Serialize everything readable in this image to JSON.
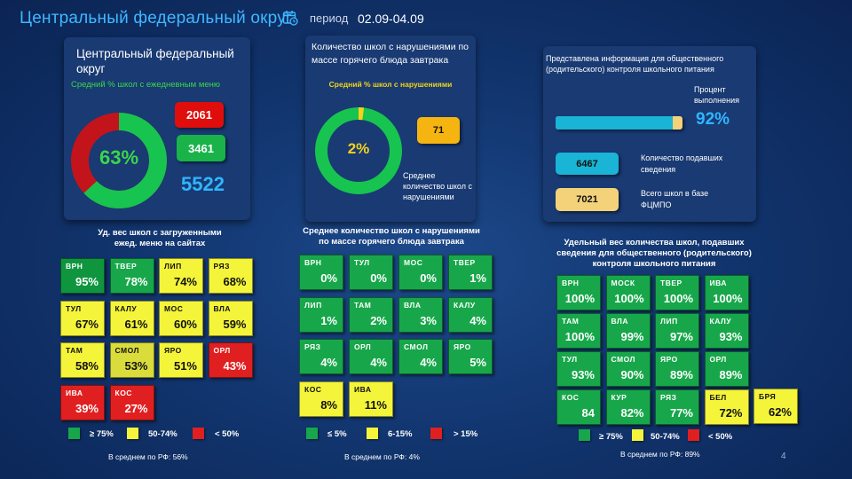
{
  "header": {
    "title": "Центральный федеральный округ",
    "period_label": "период",
    "period_value": "02.09-04.09"
  },
  "panel1": {
    "title": "Центральный федеральный округ",
    "subtitle": "Средний % школ с ежедневным меню",
    "donut_percent": "63%",
    "donut_fraction": 0.63,
    "box_red": "2061",
    "box_green": "3461",
    "total": "5522"
  },
  "panel2": {
    "title": "Количество школ с нарушениями по массе горячего блюда завтрака",
    "subtitle": "Средний % школ с нарушениями",
    "donut_percent": "2%",
    "donut_fraction": 0.02,
    "box_value": "71",
    "note": "Среднее количество школ с нарушениями"
  },
  "panel3": {
    "title": "Представлена информация для общественного (родительского) контроля школьного питания",
    "percent_label": "Процент выполнения",
    "percent_value": "92%",
    "progress_fraction": 0.92,
    "count_value": "6467",
    "count_label": "Количество подавших сведения",
    "total_value": "7021",
    "total_label": "Всего школ в базе ФЦМПО"
  },
  "section1": {
    "caption": "Уд. вес школ с загруженными ежед. меню на сайтах",
    "tiles": [
      {
        "code": "ВРН",
        "value": "95%",
        "color": "dkgreen"
      },
      {
        "code": "ТВЕР",
        "value": "78%",
        "color": "green"
      },
      {
        "code": "ЛИП",
        "value": "74%",
        "color": "yellow"
      },
      {
        "code": "РЯЗ",
        "value": "68%",
        "color": "yellow"
      },
      {
        "code": "ТУЛ",
        "value": "67%",
        "color": "yellow"
      },
      {
        "code": "КАЛУ",
        "value": "61%",
        "color": "yellow"
      },
      {
        "code": "МОС",
        "value": "60%",
        "color": "yellow"
      },
      {
        "code": "ВЛА",
        "value": "59%",
        "color": "yellow"
      },
      {
        "code": "ТАМ",
        "value": "58%",
        "color": "yellow"
      },
      {
        "code": "СМОЛ",
        "value": "53%",
        "color": "olive"
      },
      {
        "code": "ЯРО",
        "value": "51%",
        "color": "yellow"
      },
      {
        "code": "ОРЛ",
        "value": "43%",
        "color": "red"
      },
      {
        "code": "ИВА",
        "value": "39%",
        "color": "red"
      },
      {
        "code": "КОС",
        "value": "27%",
        "color": "red"
      }
    ],
    "legend": [
      "≥ 75%",
      "50-74%",
      "< 50%"
    ],
    "average": "В среднем по РФ: 56%"
  },
  "section2": {
    "caption": "Среднее количество школ с нарушениями по массе горячего блюда завтрака",
    "tiles": [
      {
        "code": "ВРН",
        "value": "0%",
        "color": "green"
      },
      {
        "code": "ТУЛ",
        "value": "0%",
        "color": "green"
      },
      {
        "code": "МОС",
        "value": "0%",
        "color": "green"
      },
      {
        "code": "ТВЕР",
        "value": "1%",
        "color": "green"
      },
      {
        "code": "ЛИП",
        "value": "1%",
        "color": "green"
      },
      {
        "code": "ТАМ",
        "value": "2%",
        "color": "green"
      },
      {
        "code": "ВЛА",
        "value": "3%",
        "color": "green"
      },
      {
        "code": "КАЛУ",
        "value": "4%",
        "color": "green"
      },
      {
        "code": "РЯЗ",
        "value": "4%",
        "color": "green"
      },
      {
        "code": "ОРЛ",
        "value": "4%",
        "color": "green"
      },
      {
        "code": "СМОЛ",
        "value": "4%",
        "color": "green"
      },
      {
        "code": "ЯРО",
        "value": "5%",
        "color": "green"
      },
      {
        "code": "КОС",
        "value": "8%",
        "color": "yellow"
      },
      {
        "code": "ИВА",
        "value": "11%",
        "color": "yellow"
      }
    ],
    "legend": [
      "≤ 5%",
      "6-15%",
      "> 15%"
    ],
    "average": "В среднем по РФ: 4%"
  },
  "section3": {
    "caption": "Удельный вес количества школ, подавших сведения для общественного (родительского) контроля школьного питания",
    "tiles": [
      {
        "code": "ВРН",
        "value": "100%",
        "color": "green"
      },
      {
        "code": "МОСК",
        "value": "100%",
        "color": "green"
      },
      {
        "code": "ТВЕР",
        "value": "100%",
        "color": "green"
      },
      {
        "code": "ИВА",
        "value": "100%",
        "color": "green"
      },
      {
        "code": "ТАМ",
        "value": "100%",
        "color": "green"
      },
      {
        "code": "ВЛА",
        "value": "99%",
        "color": "green"
      },
      {
        "code": "ЛИП",
        "value": "97%",
        "color": "green"
      },
      {
        "code": "КАЛУ",
        "value": "93%",
        "color": "green"
      },
      {
        "code": "ТУЛ",
        "value": "93%",
        "color": "green"
      },
      {
        "code": "СМОЛ",
        "value": "90%",
        "color": "green"
      },
      {
        "code": "ЯРО",
        "value": "89%",
        "color": "green"
      },
      {
        "code": "ОРЛ",
        "value": "89%",
        "color": "green"
      },
      {
        "code": "КОС",
        "value": "84",
        "color": "green"
      },
      {
        "code": "КУР",
        "value": "82%",
        "color": "green"
      },
      {
        "code": "РЯЗ",
        "value": "77%",
        "color": "green"
      },
      {
        "code": "БЕЛ",
        "value": "72%",
        "color": "yellow"
      },
      {
        "code": "БРЯ",
        "value": "62%",
        "color": "yellow"
      }
    ],
    "legend": [
      "≥ 75%",
      "50-74%",
      "< 50%"
    ],
    "average": "В среднем по РФ: 89%"
  },
  "page_number": "4",
  "colors": {
    "green": "#17a74a",
    "yellow": "#f4f43a",
    "red": "#e02020",
    "cyan": "#19b4d6",
    "accent": "#3fb8ff"
  }
}
